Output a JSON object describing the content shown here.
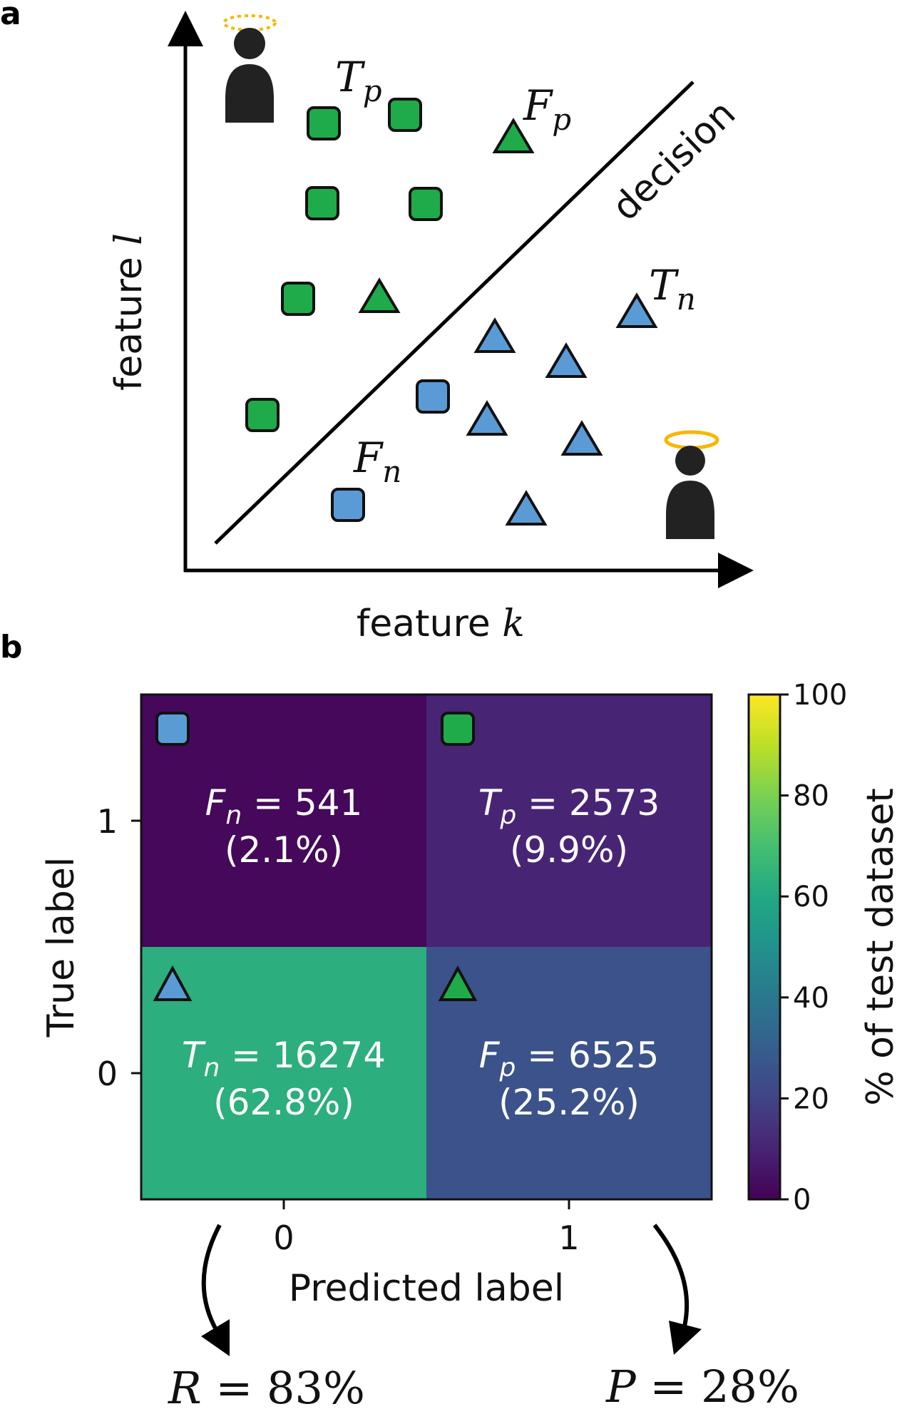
{
  "panel_a": {
    "letter": "a",
    "xlabel_prefix": "feature ",
    "xlabel_var": "k",
    "ylabel_prefix": "feature ",
    "ylabel_var": "l",
    "decision_label": "decision",
    "labels": {
      "tp": {
        "main": "T",
        "sub": "p"
      },
      "fp": {
        "main": "F",
        "sub": "p"
      },
      "tn": {
        "main": "T",
        "sub": "n"
      },
      "fn": {
        "main": "F",
        "sub": "n"
      }
    },
    "colors": {
      "green": "#1fab4a",
      "blue": "#5b9bd5",
      "halo": "#f5b800",
      "person": "#222222"
    }
  },
  "chart_data": {
    "type": "heatmap",
    "title": "",
    "xlabel": "Predicted label",
    "ylabel": "True label",
    "x_ticks": [
      "0",
      "1"
    ],
    "y_ticks": [
      "1",
      "0"
    ],
    "cells": [
      {
        "true": 1,
        "pred": 0,
        "name": "F",
        "sub": "n",
        "count": "541",
        "percent_label": "(2.1%)",
        "percent": 2.1,
        "marker": "square",
        "marker_color": "#5b9bd5"
      },
      {
        "true": 1,
        "pred": 1,
        "name": "T",
        "sub": "p",
        "count": "2573",
        "percent_label": "(9.9%)",
        "percent": 9.9,
        "marker": "square",
        "marker_color": "#1fab4a"
      },
      {
        "true": 0,
        "pred": 0,
        "name": "T",
        "sub": "n",
        "count": "16274",
        "percent_label": "(62.8%)",
        "percent": 62.8,
        "marker": "triangle",
        "marker_color": "#5b9bd5"
      },
      {
        "true": 0,
        "pred": 1,
        "name": "F",
        "sub": "p",
        "count": "6525",
        "percent_label": "(25.2%)",
        "percent": 25.2,
        "marker": "triangle",
        "marker_color": "#1fab4a"
      }
    ],
    "colorbar": {
      "label": "% of test dataset",
      "range": [
        0,
        100
      ],
      "ticks": [
        "0",
        "20",
        "40",
        "60",
        "80",
        "100"
      ],
      "colormap": "viridis"
    }
  },
  "panel_b": {
    "letter": "b",
    "recall": {
      "var": "R",
      "text": " = 83%"
    },
    "precision": {
      "var": "P",
      "text": " = 28%"
    }
  }
}
